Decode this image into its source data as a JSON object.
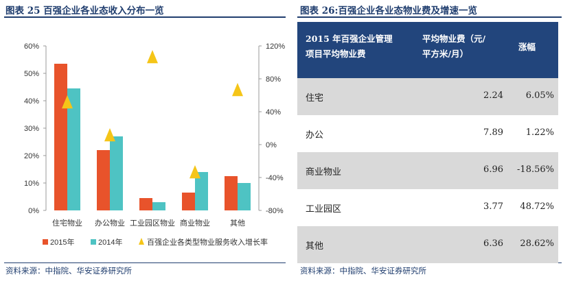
{
  "left": {
    "title": "图表 25 百强企业各业态收入分布一览",
    "source": "资料来源：中指院、华安证券研究所"
  },
  "right": {
    "title": "图表 26:百强企业各业态物业费及增速一览",
    "source": "资料来源：中指院、华安证券研究所",
    "table": {
      "headers": [
        "2015年百强企业管理项目平均物业费",
        "平均物业费（元/平方米/月）",
        "涨幅"
      ],
      "header_lines": [
        [
          "2015 年百强企业管理",
          "项目平均物业费"
        ],
        [
          "平均物业费（元/",
          "平方米/月）"
        ],
        [
          "涨幅"
        ]
      ],
      "rows": [
        {
          "type": "住宅",
          "fee": "2.24",
          "change": "6.05%"
        },
        {
          "type": "办公",
          "fee": "7.89",
          "change": "1.22%"
        },
        {
          "type": "商业物业",
          "fee": "6.96",
          "change": "-18.56%"
        },
        {
          "type": "工业园区",
          "fee": "3.77",
          "change": "48.72%"
        },
        {
          "type": "其他",
          "fee": "6.36",
          "change": "28.62%"
        }
      ]
    }
  },
  "colors": {
    "bar2015": "#e8532b",
    "bar2014": "#4ec3c3",
    "growth": "#f5c518",
    "header": "#22457c"
  },
  "chart_data": {
    "type": "bar",
    "categories": [
      "住宅物业",
      "办公物业",
      "工业园区物业",
      "商业物业",
      "其他"
    ],
    "series": [
      {
        "name": "2015年",
        "values": [
          53.5,
          22.0,
          4.5,
          6.5,
          12.5
        ],
        "axis": "left"
      },
      {
        "name": "2014年",
        "values": [
          44.5,
          27.0,
          3.0,
          14.0,
          10.0
        ],
        "axis": "left"
      },
      {
        "name": "百强企业各类型物业服务收入增长率",
        "values": [
          50,
          10,
          105,
          -35,
          65
        ],
        "axis": "right",
        "marker": "triangle"
      }
    ],
    "ylim_left": [
      0,
      60
    ],
    "yticks_left": [
      "0%",
      "10%",
      "20%",
      "30%",
      "40%",
      "50%",
      "60%"
    ],
    "ylim_right": [
      -80,
      120
    ],
    "yticks_right": [
      "-80%",
      "-40%",
      "0%",
      "40%",
      "80%",
      "120%"
    ],
    "legend_position": "bottom"
  }
}
